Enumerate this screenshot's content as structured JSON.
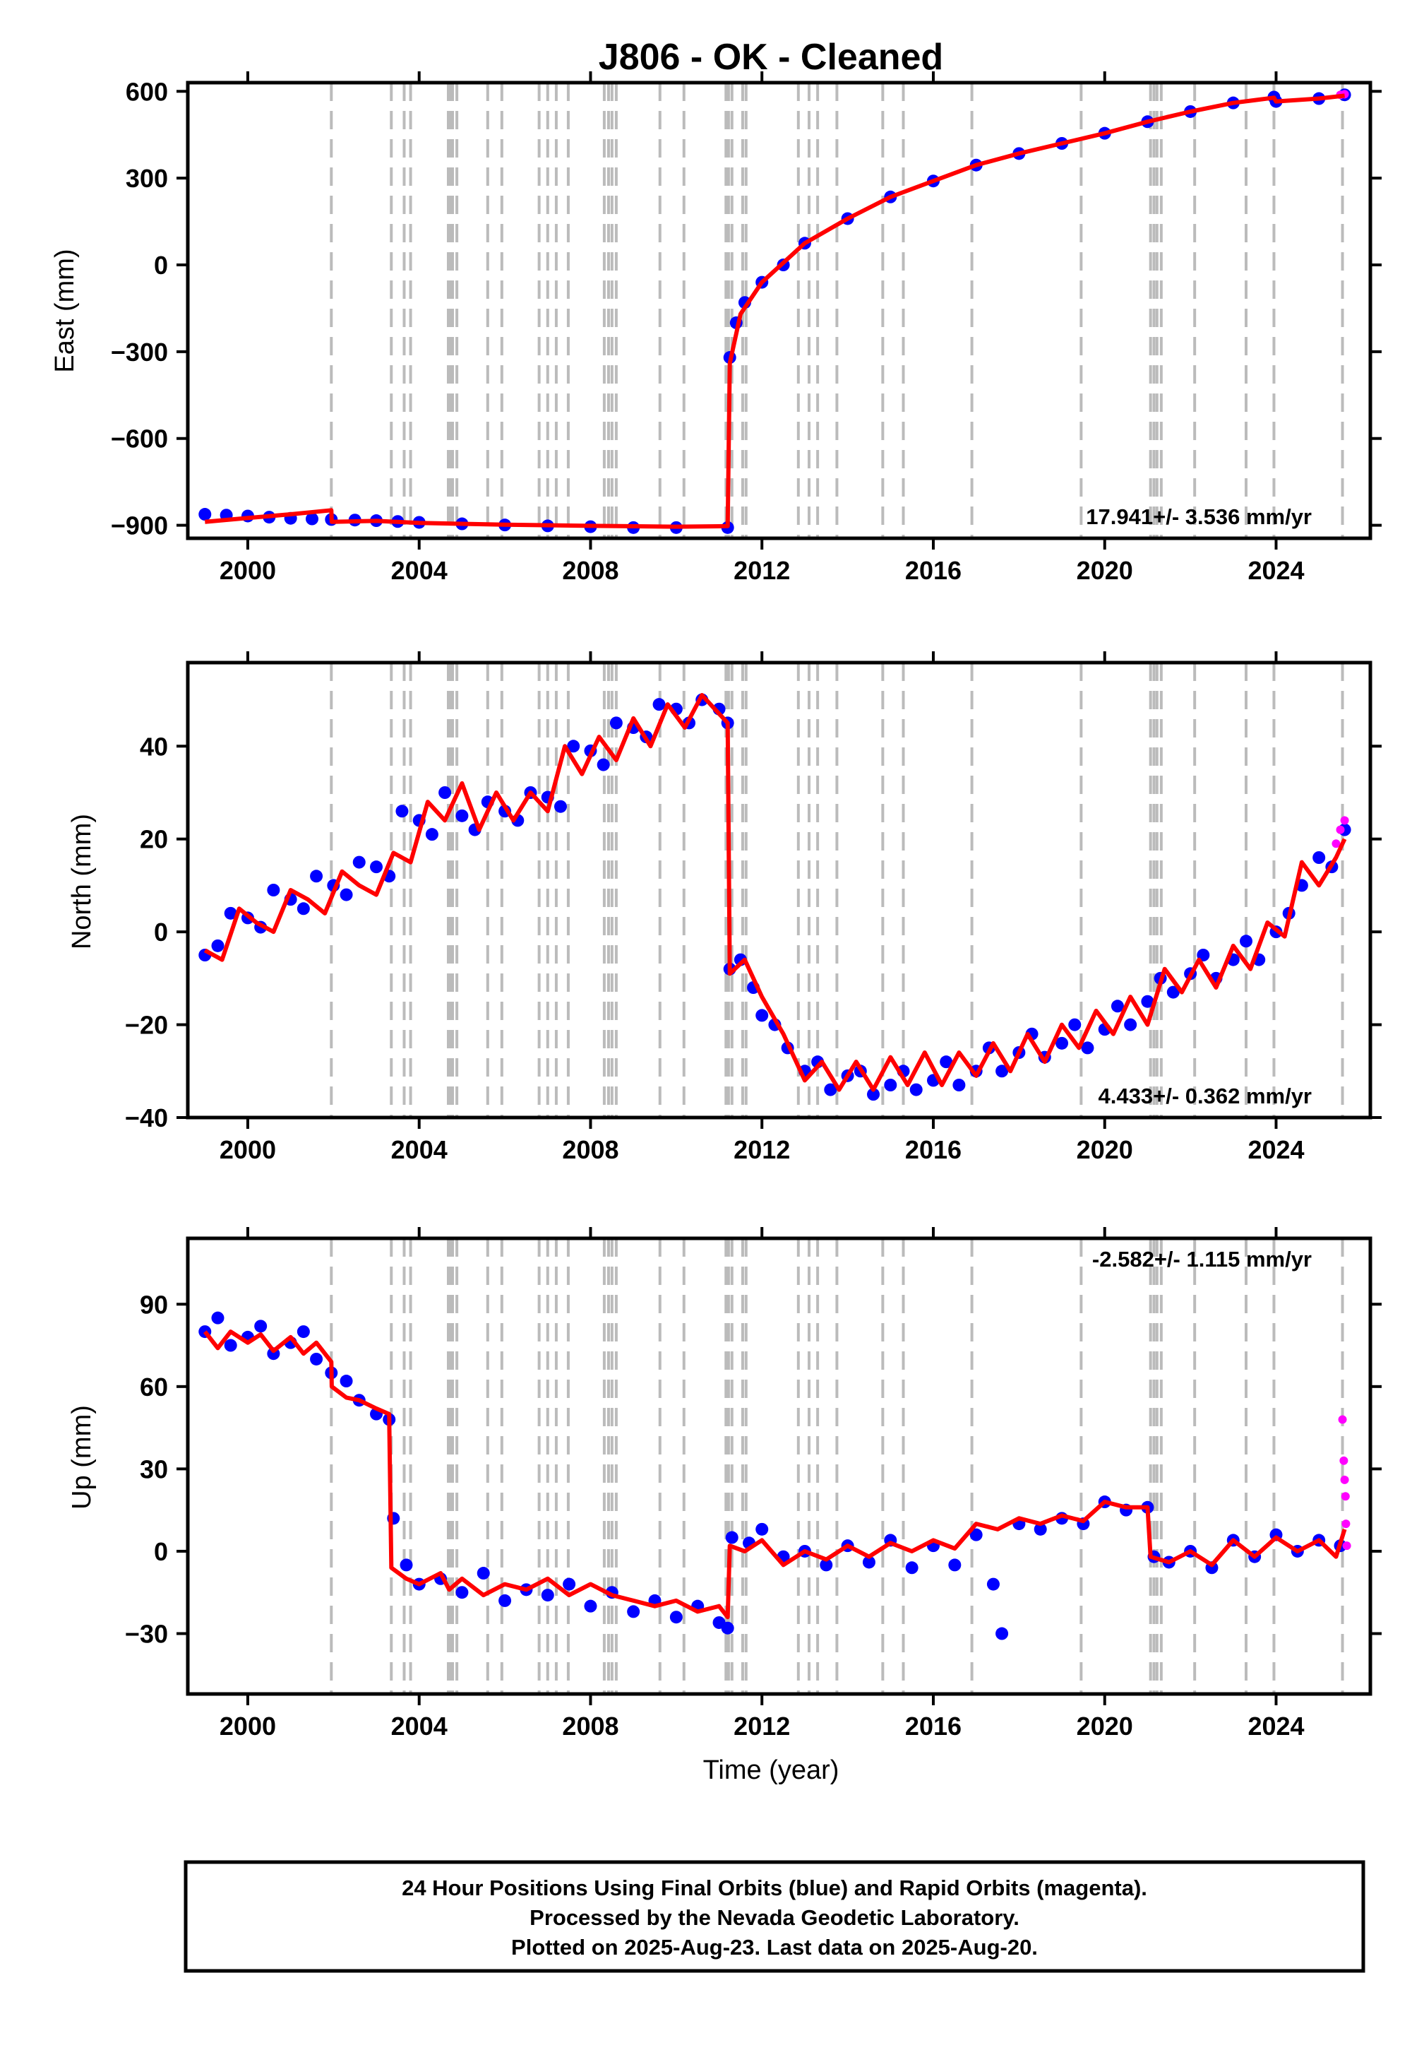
{
  "title": "J806  - OK - Cleaned",
  "colors": {
    "final": "#0000ff",
    "rapid": "#ff00ff",
    "model": "#ff0000",
    "event": "#bbbbbb"
  },
  "chart_data": [
    {
      "type": "scatter",
      "ylabel": "East (mm)",
      "xlabel": "",
      "xlim": [
        1998.6,
        2026.2
      ],
      "ylim": [
        -945,
        630
      ],
      "yticks": [
        -900,
        -600,
        -300,
        0,
        300,
        600
      ],
      "rate": "17.941+/- 3.536 mm/yr",
      "series": [
        {
          "name": "Final Orbits",
          "x": [
            1999.0,
            1999.5,
            2000.0,
            2000.5,
            2001.0,
            2001.5,
            2001.95,
            2002.5,
            2003.0,
            2003.5,
            2004.0,
            2005.0,
            2006.0,
            2007.0,
            2008.0,
            2009.0,
            2010.0,
            2011.2,
            2011.25,
            2011.4,
            2011.6,
            2012.0,
            2012.5,
            2013.0,
            2014.0,
            2015.0,
            2016.0,
            2017.0,
            2018.0,
            2019.0,
            2020.0,
            2021.0,
            2022.0,
            2023.0,
            2023.95,
            2024.0,
            2025.0,
            2025.6
          ],
          "y": [
            -862,
            -865,
            -868,
            -872,
            -876,
            -878,
            -880,
            -882,
            -884,
            -887,
            -890,
            -895,
            -899,
            -902,
            -905,
            -908,
            -908,
            -908,
            -320,
            -200,
            -130,
            -60,
            0,
            75,
            160,
            235,
            290,
            345,
            385,
            420,
            455,
            495,
            530,
            560,
            580,
            565,
            575,
            588
          ]
        },
        {
          "name": "Rapid Orbits",
          "x": [
            2025.5,
            2025.6
          ],
          "y": [
            588,
            590
          ]
        },
        {
          "name": "Model",
          "x": [
            1999.0,
            2000.0,
            2001.0,
            2001.95,
            2001.96,
            2003.0,
            2004.0,
            2006.0,
            2008.0,
            2010.0,
            2011.2,
            2011.25,
            2011.5,
            2012.0,
            2013.0,
            2014.0,
            2015.0,
            2016.0,
            2017.0,
            2018.0,
            2019.0,
            2020.0,
            2021.0,
            2022.0,
            2023.0,
            2023.95,
            2024.0,
            2025.0,
            2025.6
          ],
          "y": [
            -888,
            -875,
            -862,
            -848,
            -888,
            -885,
            -892,
            -898,
            -902,
            -905,
            -903,
            -340,
            -170,
            -60,
            75,
            160,
            235,
            290,
            345,
            385,
            420,
            455,
            495,
            530,
            560,
            578,
            565,
            575,
            585
          ]
        }
      ],
      "events": [
        2001.95,
        2003.35,
        2003.65,
        2003.8,
        2004.68,
        2004.73,
        2004.78,
        2004.88,
        2005.6,
        2005.93,
        2006.8,
        2007.0,
        2007.2,
        2007.48,
        2008.32,
        2008.42,
        2008.5,
        2008.6,
        2009.62,
        2010.18,
        2011.16,
        2011.22,
        2011.3,
        2011.55,
        2011.63,
        2012.85,
        2013.1,
        2013.3,
        2013.75,
        2014.82,
        2015.3,
        2016.9,
        2019.45,
        2021.07,
        2021.15,
        2021.22,
        2021.32,
        2022.1,
        2023.3,
        2023.95,
        2025.55
      ]
    },
    {
      "type": "scatter",
      "ylabel": "North (mm)",
      "xlabel": "",
      "xlim": [
        1998.6,
        2026.2
      ],
      "ylim": [
        -40,
        58
      ],
      "yticks": [
        -40,
        -20,
        0,
        20,
        40
      ],
      "rate": "4.433+/- 0.362 mm/yr",
      "series": [
        {
          "name": "Final Orbits",
          "x": [
            1999.0,
            1999.3,
            1999.6,
            2000.0,
            2000.3,
            2000.6,
            2001.0,
            2001.3,
            2001.6,
            2002.0,
            2002.3,
            2002.6,
            2003.0,
            2003.3,
            2003.6,
            2004.0,
            2004.3,
            2004.6,
            2005.0,
            2005.3,
            2005.6,
            2006.0,
            2006.3,
            2006.6,
            2007.0,
            2007.3,
            2007.6,
            2008.0,
            2008.3,
            2008.6,
            2009.0,
            2009.3,
            2009.6,
            2010.0,
            2010.3,
            2010.6,
            2011.0,
            2011.2,
            2011.25,
            2011.5,
            2011.8,
            2012.0,
            2012.3,
            2012.6,
            2013.0,
            2013.3,
            2013.6,
            2014.0,
            2014.3,
            2014.6,
            2015.0,
            2015.3,
            2015.6,
            2016.0,
            2016.3,
            2016.6,
            2017.0,
            2017.3,
            2017.6,
            2018.0,
            2018.3,
            2018.6,
            2019.0,
            2019.3,
            2019.6,
            2020.0,
            2020.3,
            2020.6,
            2021.0,
            2021.3,
            2021.6,
            2022.0,
            2022.3,
            2022.6,
            2023.0,
            2023.3,
            2023.6,
            2024.0,
            2024.3,
            2024.6,
            2025.0,
            2025.3,
            2025.6
          ],
          "y": [
            -5,
            -3,
            4,
            3,
            1,
            9,
            7,
            5,
            12,
            10,
            8,
            15,
            14,
            12,
            26,
            24,
            21,
            30,
            25,
            22,
            28,
            26,
            24,
            30,
            29,
            27,
            40,
            39,
            36,
            45,
            44,
            42,
            49,
            48,
            45,
            50,
            48,
            45,
            -8,
            -6,
            -12,
            -18,
            -20,
            -25,
            -30,
            -28,
            -34,
            -31,
            -30,
            -35,
            -33,
            -30,
            -34,
            -32,
            -28,
            -33,
            -30,
            -25,
            -30,
            -26,
            -22,
            -27,
            -24,
            -20,
            -25,
            -21,
            -16,
            -20,
            -15,
            -10,
            -13,
            -9,
            -5,
            -10,
            -6,
            -2,
            -6,
            0,
            4,
            10,
            16,
            14,
            22
          ]
        },
        {
          "name": "Rapid Orbits",
          "x": [
            2025.4,
            2025.5,
            2025.6
          ],
          "y": [
            19,
            22,
            24
          ]
        },
        {
          "name": "Model",
          "x": [
            1999.0,
            1999.4,
            1999.8,
            2000.2,
            2000.6,
            2001.0,
            2001.4,
            2001.8,
            2002.2,
            2002.6,
            2003.0,
            2003.4,
            2003.8,
            2004.2,
            2004.6,
            2005.0,
            2005.4,
            2005.8,
            2006.2,
            2006.6,
            2007.0,
            2007.4,
            2007.8,
            2008.2,
            2008.6,
            2009.0,
            2009.4,
            2009.8,
            2010.2,
            2010.6,
            2011.0,
            2011.2,
            2011.25,
            2011.6,
            2012.0,
            2012.5,
            2013.0,
            2013.4,
            2013.8,
            2014.2,
            2014.6,
            2015.0,
            2015.4,
            2015.8,
            2016.2,
            2016.6,
            2017.0,
            2017.4,
            2017.8,
            2018.2,
            2018.6,
            2019.0,
            2019.4,
            2019.8,
            2020.2,
            2020.6,
            2021.0,
            2021.4,
            2021.8,
            2022.2,
            2022.6,
            2023.0,
            2023.4,
            2023.8,
            2024.2,
            2024.6,
            2025.0,
            2025.4,
            2025.6
          ],
          "y": [
            -4,
            -6,
            5,
            2,
            0,
            9,
            7,
            4,
            13,
            10,
            8,
            17,
            15,
            28,
            24,
            32,
            22,
            30,
            24,
            30,
            26,
            40,
            34,
            42,
            37,
            46,
            40,
            49,
            44,
            51,
            47,
            45,
            -9,
            -6,
            -14,
            -22,
            -32,
            -28,
            -34,
            -28,
            -34,
            -27,
            -33,
            -26,
            -33,
            -26,
            -31,
            -24,
            -30,
            -22,
            -28,
            -20,
            -25,
            -17,
            -22,
            -14,
            -20,
            -8,
            -13,
            -6,
            -12,
            -3,
            -8,
            2,
            -1,
            15,
            10,
            16,
            20
          ]
        }
      ],
      "events": [
        2001.95,
        2003.35,
        2003.65,
        2003.8,
        2004.68,
        2004.73,
        2004.78,
        2004.88,
        2005.6,
        2005.93,
        2006.8,
        2007.0,
        2007.2,
        2007.48,
        2008.32,
        2008.42,
        2008.5,
        2008.6,
        2009.62,
        2010.18,
        2011.16,
        2011.22,
        2011.3,
        2011.55,
        2011.63,
        2012.85,
        2013.1,
        2013.3,
        2013.75,
        2014.82,
        2015.3,
        2016.9,
        2019.45,
        2021.07,
        2021.15,
        2021.22,
        2021.32,
        2022.1,
        2023.3,
        2023.95,
        2025.55
      ]
    },
    {
      "type": "scatter",
      "ylabel": "Up (mm)",
      "xlabel": "Time (year)",
      "xlim": [
        1998.6,
        2026.2
      ],
      "ylim": [
        -52,
        114
      ],
      "yticks": [
        -30,
        0,
        30,
        60,
        90
      ],
      "rate": "-2.582+/- 1.115 mm/yr",
      "series": [
        {
          "name": "Final Orbits",
          "x": [
            1999.0,
            1999.3,
            1999.6,
            2000.0,
            2000.3,
            2000.6,
            2001.0,
            2001.3,
            2001.6,
            2001.95,
            2002.3,
            2002.6,
            2003.0,
            2003.3,
            2003.4,
            2003.7,
            2004.0,
            2004.5,
            2005.0,
            2005.5,
            2006.0,
            2006.5,
            2007.0,
            2007.5,
            2008.0,
            2008.5,
            2009.0,
            2009.5,
            2010.0,
            2010.5,
            2011.0,
            2011.2,
            2011.3,
            2011.7,
            2012.0,
            2012.5,
            2013.0,
            2013.5,
            2014.0,
            2014.5,
            2015.0,
            2015.5,
            2016.0,
            2016.5,
            2017.0,
            2017.4,
            2017.6,
            2018.0,
            2018.5,
            2019.0,
            2019.5,
            2020.0,
            2020.5,
            2021.0,
            2021.15,
            2021.5,
            2022.0,
            2022.5,
            2023.0,
            2023.5,
            2024.0,
            2024.5,
            2025.0,
            2025.5
          ],
          "y": [
            80,
            85,
            75,
            78,
            82,
            72,
            76,
            80,
            70,
            65,
            62,
            55,
            50,
            48,
            12,
            -5,
            -12,
            -10,
            -15,
            -8,
            -18,
            -14,
            -16,
            -12,
            -20,
            -15,
            -22,
            -18,
            -24,
            -20,
            -26,
            -28,
            5,
            3,
            8,
            -2,
            0,
            -5,
            2,
            -4,
            4,
            -6,
            2,
            -5,
            6,
            -12,
            -30,
            10,
            8,
            12,
            10,
            18,
            15,
            16,
            -2,
            -4,
            0,
            -6,
            4,
            -2,
            6,
            0,
            4,
            2
          ]
        },
        {
          "name": "Rapid Orbits",
          "x": [
            2025.55,
            2025.58,
            2025.6,
            2025.62,
            2025.63,
            2025.65
          ],
          "y": [
            48,
            33,
            26,
            20,
            10,
            2
          ]
        },
        {
          "name": "Model",
          "x": [
            1999.0,
            1999.3,
            1999.6,
            2000.0,
            2000.3,
            2000.6,
            2001.0,
            2001.3,
            2001.6,
            2001.95,
            2001.96,
            2002.3,
            2002.6,
            2003.0,
            2003.3,
            2003.35,
            2003.7,
            2004.0,
            2004.5,
            2004.7,
            2005.0,
            2005.5,
            2006.0,
            2006.5,
            2007.0,
            2007.5,
            2008.0,
            2008.5,
            2009.0,
            2009.5,
            2010.0,
            2010.5,
            2011.0,
            2011.2,
            2011.25,
            2011.6,
            2012.0,
            2012.5,
            2013.0,
            2013.5,
            2014.0,
            2014.5,
            2015.0,
            2015.5,
            2016.0,
            2016.5,
            2017.0,
            2017.5,
            2018.0,
            2018.5,
            2019.0,
            2019.5,
            2020.0,
            2020.5,
            2021.0,
            2021.07,
            2021.5,
            2022.0,
            2022.5,
            2023.0,
            2023.5,
            2024.0,
            2024.5,
            2025.0,
            2025.4,
            2025.6
          ],
          "y": [
            80,
            74,
            80,
            76,
            79,
            73,
            78,
            72,
            76,
            69,
            60,
            56,
            55,
            52,
            50,
            -6,
            -10,
            -12,
            -8,
            -14,
            -10,
            -16,
            -12,
            -14,
            -10,
            -16,
            -12,
            -16,
            -18,
            -20,
            -18,
            -22,
            -20,
            -24,
            2,
            0,
            4,
            -5,
            0,
            -3,
            2,
            -2,
            3,
            0,
            4,
            1,
            10,
            8,
            12,
            10,
            13,
            11,
            18,
            16,
            16,
            -2,
            -4,
            0,
            -5,
            4,
            -2,
            5,
            0,
            4,
            -2,
            8
          ]
        }
      ],
      "events": [
        2001.95,
        2003.35,
        2003.65,
        2003.8,
        2004.68,
        2004.73,
        2004.78,
        2004.88,
        2005.6,
        2005.93,
        2006.8,
        2007.0,
        2007.2,
        2007.48,
        2008.32,
        2008.42,
        2008.5,
        2008.6,
        2009.62,
        2010.18,
        2011.16,
        2011.22,
        2011.3,
        2011.55,
        2011.63,
        2012.85,
        2013.1,
        2013.3,
        2013.75,
        2014.82,
        2015.3,
        2016.9,
        2019.45,
        2021.07,
        2021.15,
        2021.22,
        2021.32,
        2022.1,
        2023.3,
        2023.95,
        2025.55
      ]
    }
  ],
  "xticks": [
    2000,
    2004,
    2008,
    2012,
    2016,
    2020,
    2024
  ],
  "footer": {
    "line1": "24 Hour Positions Using Final Orbits (blue) and Rapid Orbits (magenta).",
    "line2": "Processed by the Nevada Geodetic Laboratory.",
    "line3": "Plotted on 2025-Aug-23. Last data on 2025-Aug-20."
  }
}
